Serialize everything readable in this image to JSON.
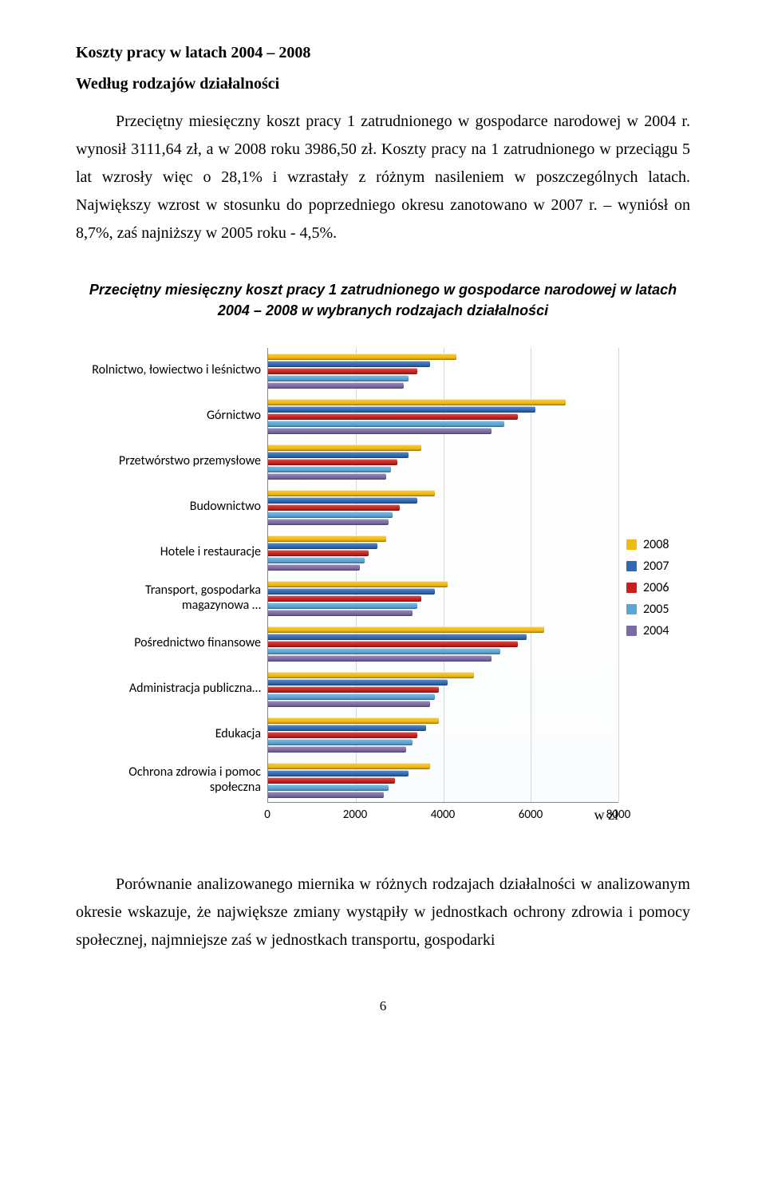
{
  "title_line1": "Koszty pracy w latach 2004 – 2008",
  "title_line2": "Według rodzajów działalności",
  "intro": "Przeciętny miesięczny koszt pracy 1 zatrudnionego w gospodarce narodowej w 2004 r. wynosił 3111,64 zł, a w 2008 roku 3986,50 zł. Koszty pracy na 1 zatrudnionego w przeciągu 5 lat wzrosły więc o 28,1% i wzrastały z różnym nasileniem w poszczególnych latach. Największy wzrost w stosunku do poprzedniego okresu  zanotowano w 2007 r. – wyniósł on 8,7%, zaś najniższy w 2005 roku -  4,5%.",
  "chart_title": "Przeciętny miesięczny koszt pracy 1 zatrudnionego w gospodarce narodowej w latach 2004 – 2008 w wybranych rodzajach działalności",
  "chart": {
    "type": "bar-horizontal-grouped",
    "x_min": 0,
    "x_max": 8000,
    "x_step": 2000,
    "x_ticks": [
      0,
      2000,
      4000,
      6000,
      8000
    ],
    "unit_label": "w zł",
    "series": [
      {
        "year": "2008",
        "color": "#f2b90f"
      },
      {
        "year": "2007",
        "color": "#2f69b3"
      },
      {
        "year": "2006",
        "color": "#c6211d"
      },
      {
        "year": "2005",
        "color": "#5aa6d8"
      },
      {
        "year": "2004",
        "color": "#7c6aa6"
      }
    ],
    "categories": [
      {
        "label": "Rolnictwo, łowiectwo i leśnictwo",
        "v": {
          "2008": 4300,
          "2007": 3700,
          "2006": 3400,
          "2005": 3200,
          "2004": 3100
        }
      },
      {
        "label": "Górnictwo",
        "v": {
          "2008": 6800,
          "2007": 6100,
          "2006": 5700,
          "2005": 5400,
          "2004": 5100
        }
      },
      {
        "label": "Przetwórstwo przemysłowe",
        "v": {
          "2008": 3500,
          "2007": 3200,
          "2006": 2950,
          "2005": 2800,
          "2004": 2700
        }
      },
      {
        "label": "Budownictwo",
        "v": {
          "2008": 3800,
          "2007": 3400,
          "2006": 3000,
          "2005": 2850,
          "2004": 2750
        }
      },
      {
        "label": "Hotele i restauracje",
        "v": {
          "2008": 2700,
          "2007": 2500,
          "2006": 2300,
          "2005": 2200,
          "2004": 2100
        }
      },
      {
        "label": "Transport, gospodarka magazynowa …",
        "v": {
          "2008": 4100,
          "2007": 3800,
          "2006": 3500,
          "2005": 3400,
          "2004": 3300
        }
      },
      {
        "label": "Pośrednictwo finansowe",
        "v": {
          "2008": 6300,
          "2007": 5900,
          "2006": 5700,
          "2005": 5300,
          "2004": 5100
        }
      },
      {
        "label": "Administracja publiczna…",
        "v": {
          "2008": 4700,
          "2007": 4100,
          "2006": 3900,
          "2005": 3800,
          "2004": 3700
        }
      },
      {
        "label": "Edukacja",
        "v": {
          "2008": 3900,
          "2007": 3600,
          "2006": 3400,
          "2005": 3300,
          "2004": 3150
        }
      },
      {
        "label": "Ochrona zdrowia i pomoc społeczna",
        "v": {
          "2008": 3700,
          "2007": 3200,
          "2006": 2900,
          "2005": 2750,
          "2004": 2650
        }
      }
    ],
    "background_color": "#ffffff",
    "grid_color": "#d6d6d6",
    "label_font": "Calibri",
    "label_fontsize": 16
  },
  "outro": "Porównanie   analizowanego   miernika   w   różnych   rodzajach   działalności w analizowanym okresie wskazuje, że największe zmiany wystąpiły w jednostkach ochrony zdrowia  i  pomocy  społecznej,  najmniejsze  zaś  w  jednostkach  transportu,  gospodarki",
  "page_number": "6"
}
